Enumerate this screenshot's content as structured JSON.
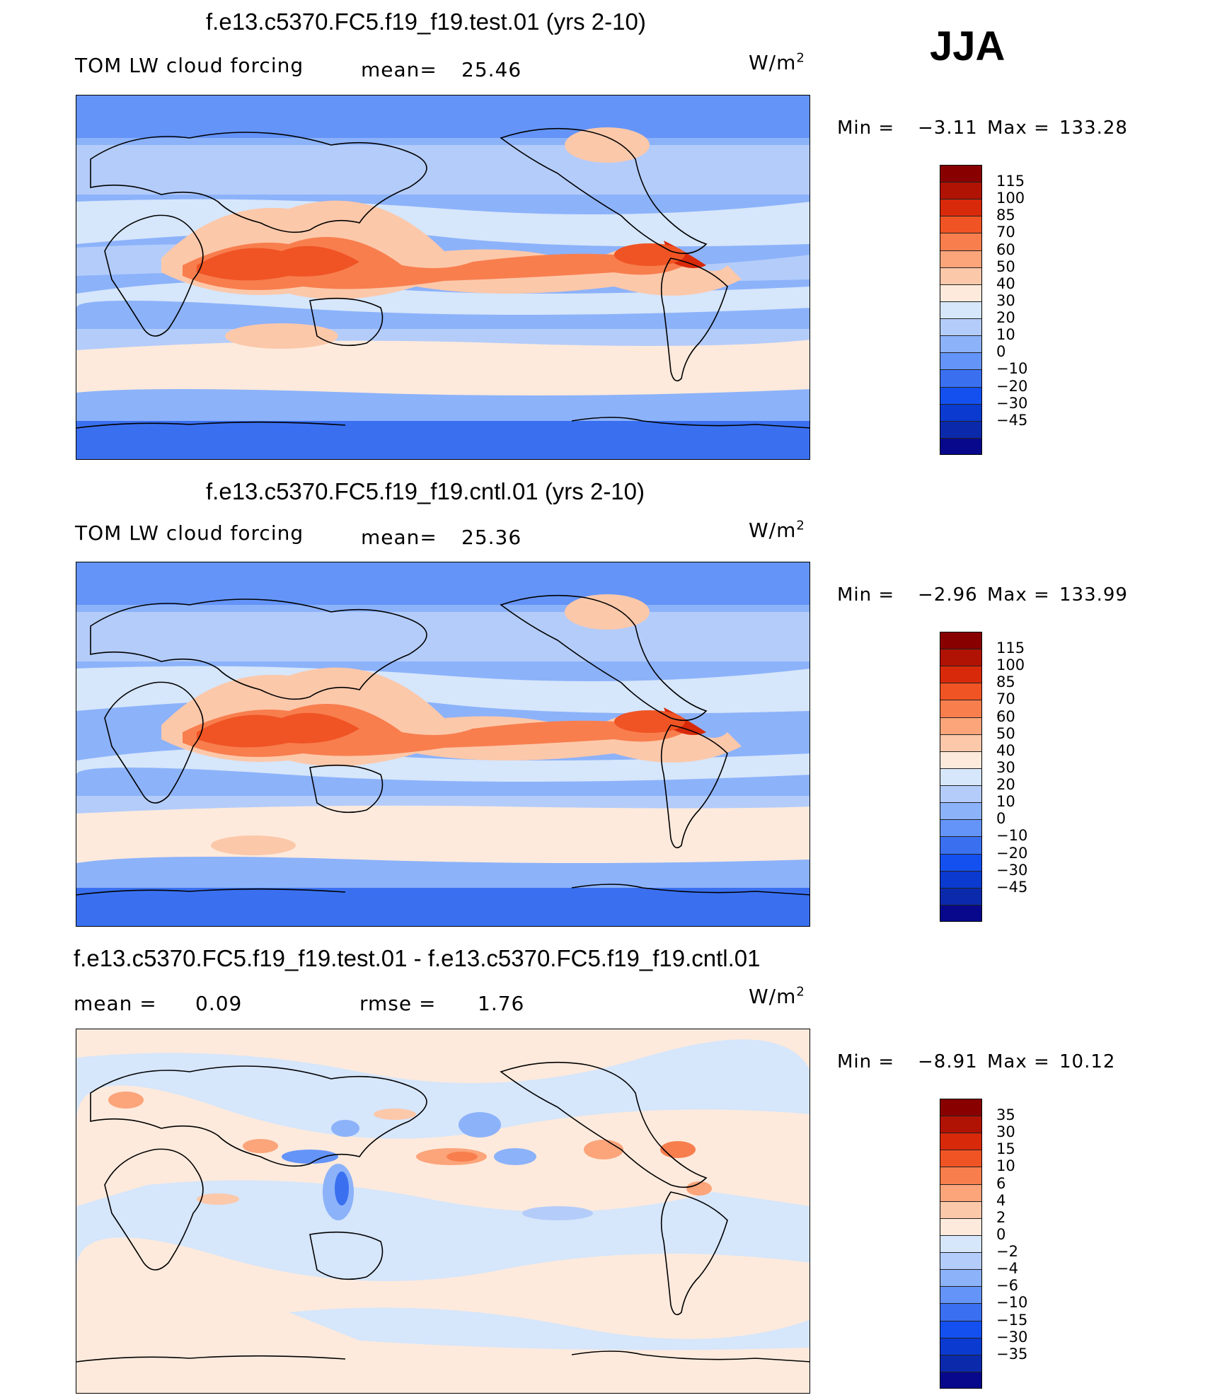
{
  "season": "JJA",
  "units_label": "W/m",
  "units_sup": "2",
  "colors": {
    "full": [
      "#08088c",
      "#0a2aab",
      "#0a3ad0",
      "#1450f0",
      "#3a70f0",
      "#6494f8",
      "#8cb2fa",
      "#b4ccfa",
      "#d6e6fb",
      "#fdeadc",
      "#fcc8aa",
      "#fca47a",
      "#f87e4e",
      "#f05424",
      "#d82a0a",
      "#b01204",
      "#880000"
    ],
    "diff": [
      "#08088c",
      "#0a2aab",
      "#0a3ad0",
      "#1450f0",
      "#3a70f0",
      "#6494f8",
      "#8cb2fa",
      "#b4ccfa",
      "#d6e6fb",
      "#fdeadc",
      "#fcc8aa",
      "#fca47a",
      "#f87e4e",
      "#f05424",
      "#d82a0a",
      "#b01204",
      "#880000"
    ]
  },
  "panels": [
    {
      "title": "f.e13.c5370.FC5.f19_f19.test.01 (yrs 2-10)",
      "left_label": "TOM LW cloud forcing",
      "stat_label": "mean=",
      "stat_value": "25.46",
      "min_label": "Min =",
      "min_value": "−3.11",
      "max_label": "Max =",
      "max_value": "133.28"
    },
    {
      "title": "f.e13.c5370.FC5.f19_f19.cntl.01 (yrs 2-10)",
      "left_label": "TOM LW cloud forcing",
      "stat_label": "mean=",
      "stat_value": "25.36",
      "min_label": "Min =",
      "min_value": "−2.96",
      "max_label": "Max =",
      "max_value": "133.99"
    },
    {
      "title": "f.e13.c5370.FC5.f19_f19.test.01 - f.e13.c5370.FC5.f19_f19.cntl.01",
      "mean_label": "mean =",
      "mean_value": "0.09",
      "rmse_label": "rmse =",
      "rmse_value": "1.76",
      "min_label": "Min =",
      "min_value": "−8.91",
      "max_label": "Max =",
      "max_value": "10.12"
    }
  ],
  "chart_data": [
    {
      "type": "heatmap",
      "title": "f.e13.c5370.FC5.f19_f19.test.01 (yrs 2-10)",
      "variable": "TOM LW cloud forcing",
      "units": "W/m2",
      "mean": 25.46,
      "min": -3.11,
      "max": 133.28,
      "contour_levels": [
        -45,
        -30,
        -20,
        -10,
        0,
        10,
        20,
        30,
        40,
        50,
        60,
        70,
        85,
        100,
        115
      ]
    },
    {
      "type": "heatmap",
      "title": "f.e13.c5370.FC5.f19_f19.cntl.01 (yrs 2-10)",
      "variable": "TOM LW cloud forcing",
      "units": "W/m2",
      "mean": 25.36,
      "min": -2.96,
      "max": 133.99,
      "contour_levels": [
        -45,
        -30,
        -20,
        -10,
        0,
        10,
        20,
        30,
        40,
        50,
        60,
        70,
        85,
        100,
        115
      ]
    },
    {
      "type": "heatmap",
      "title": "f.e13.c5370.FC5.f19_f19.test.01 - f.e13.c5370.FC5.f19_f19.cntl.01",
      "units": "W/m2",
      "mean": 0.09,
      "rmse": 1.76,
      "min": -8.91,
      "max": 10.12,
      "contour_levels": [
        -35,
        -30,
        -15,
        -10,
        -6,
        -4,
        -2,
        0,
        2,
        4,
        6,
        10,
        15,
        30,
        35
      ]
    }
  ],
  "colorbars": [
    {
      "labels": [
        "115",
        "100",
        "85",
        "70",
        "60",
        "50",
        "40",
        "30",
        "20",
        "10",
        "0",
        "−10",
        "−20",
        "−30",
        "−45"
      ]
    },
    {
      "labels": [
        "115",
        "100",
        "85",
        "70",
        "60",
        "50",
        "40",
        "30",
        "20",
        "10",
        "0",
        "−10",
        "−20",
        "−30",
        "−45"
      ]
    },
    {
      "labels": [
        "35",
        "30",
        "15",
        "10",
        "6",
        "4",
        "2",
        "0",
        "−2",
        "−4",
        "−6",
        "−10",
        "−15",
        "−30",
        "−35"
      ]
    }
  ]
}
